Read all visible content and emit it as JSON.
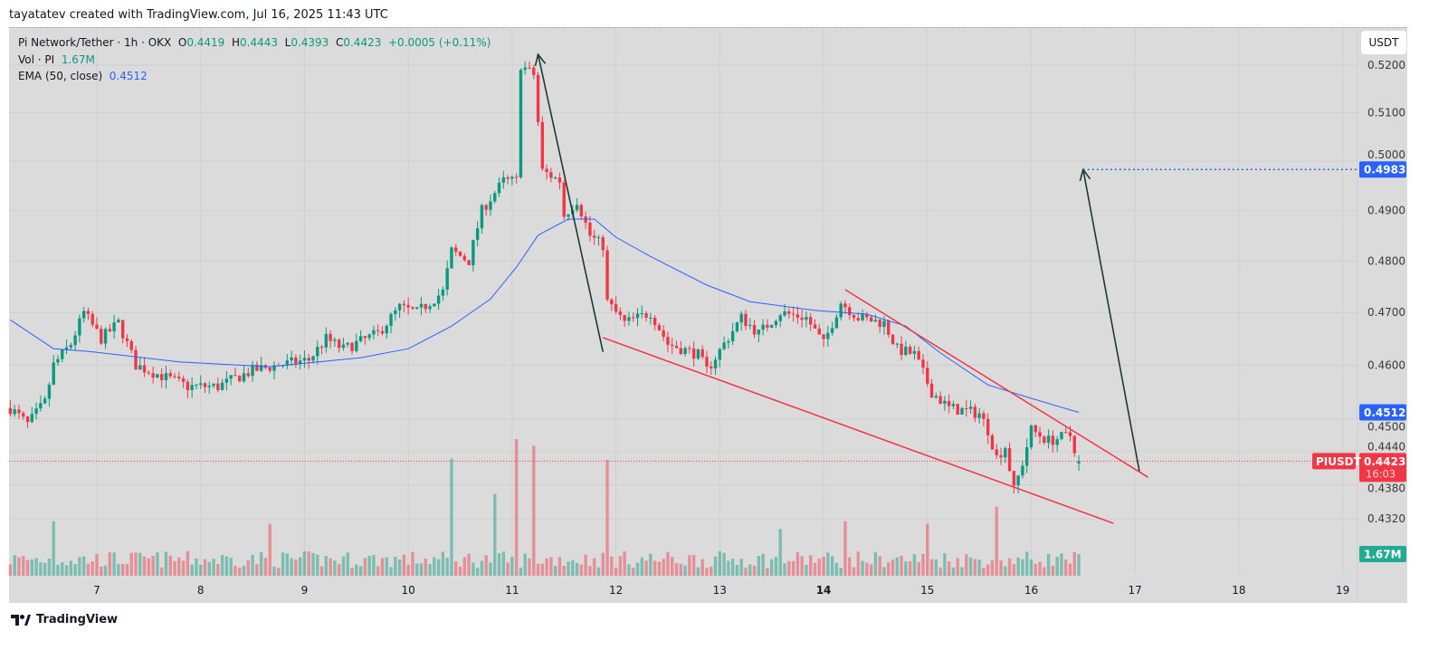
{
  "caption": "tayatatev created with TradingView.com, Jul 16, 2025 11:43 UTC",
  "legend": {
    "symbol": "Pi Network/Tether · 1h · OKX",
    "o_label": "O",
    "o": "0.4419",
    "h_label": "H",
    "h": "0.4443",
    "l_label": "L",
    "l": "0.4393",
    "c_label": "C",
    "c": "0.4423",
    "change": "+0.0005 (+0.11%)",
    "vol_label": "Vol · PI",
    "vol": "1.67M",
    "ema_label": "EMA (50, close)",
    "ema": "0.4512"
  },
  "currency_button": "USDT",
  "footer_logo": "TradingView",
  "colors": {
    "up": "#089981",
    "down": "#f23645",
    "ema": "#2962ff",
    "background": "#dbdbdb",
    "annotation_arrow": "#1e3a2f",
    "trendline": "#f23645"
  },
  "chart_data": {
    "type": "candlestick",
    "interval": "1h",
    "y_scale": "log",
    "ylim": [
      0.4245,
      0.529
    ],
    "y_ticks": [
      "0.5200",
      "0.5100",
      "0.5000",
      "0.4900",
      "0.4800",
      "0.4700",
      "0.4600",
      "0.4500",
      "0.4440",
      "0.4380",
      "0.4320"
    ],
    "x_ticks": [
      {
        "label": "7",
        "t": "2025-07-07T00:00"
      },
      {
        "label": "8",
        "t": "2025-07-08T00:00"
      },
      {
        "label": "9",
        "t": "2025-07-09T00:00"
      },
      {
        "label": "10",
        "t": "2025-07-10T00:00"
      },
      {
        "label": "11",
        "t": "2025-07-11T00:00"
      },
      {
        "label": "12",
        "t": "2025-07-12T00:00"
      },
      {
        "label": "13",
        "t": "2025-07-13T00:00"
      },
      {
        "label": "14",
        "t": "2025-07-14T00:00",
        "bold": true
      },
      {
        "label": "15",
        "t": "2025-07-15T00:00"
      },
      {
        "label": "16",
        "t": "2025-07-16T00:00"
      },
      {
        "label": "17",
        "t": "2025-07-17T00:00"
      },
      {
        "label": "18",
        "t": "2025-07-18T00:00"
      },
      {
        "label": "19",
        "t": "2025-07-19T00:00"
      }
    ],
    "close_path": [
      [
        "2025-07-06T04:00",
        0.452
      ],
      [
        "2025-07-06T08:00",
        0.449
      ],
      [
        "2025-07-06T12:00",
        0.453
      ],
      [
        "2025-07-06T14:00",
        0.46
      ],
      [
        "2025-07-06T18:00",
        0.464
      ],
      [
        "2025-07-06T21:00",
        0.47
      ],
      [
        "2025-07-07T01:00",
        0.465
      ],
      [
        "2025-07-07T05:00",
        0.468
      ],
      [
        "2025-07-07T09:00",
        0.46
      ],
      [
        "2025-07-07T15:00",
        0.458
      ],
      [
        "2025-07-07T21:00",
        0.456
      ],
      [
        "2025-07-08T04:00",
        0.456
      ],
      [
        "2025-07-08T12:00",
        0.459
      ],
      [
        "2025-07-08T18:00",
        0.46
      ],
      [
        "2025-07-09T01:00",
        0.461
      ],
      [
        "2025-07-09T05:00",
        0.465
      ],
      [
        "2025-07-09T09:00",
        0.463
      ],
      [
        "2025-07-09T17:00",
        0.466
      ],
      [
        "2025-07-09T22:00",
        0.471
      ],
      [
        "2025-07-10T02:00",
        0.47
      ],
      [
        "2025-07-10T08:00",
        0.474
      ],
      [
        "2025-07-10T10:00",
        0.482
      ],
      [
        "2025-07-10T14:00",
        0.48
      ],
      [
        "2025-07-10T17:00",
        0.49
      ],
      [
        "2025-07-10T22:00",
        0.496
      ],
      [
        "2025-07-11T01:00",
        0.496
      ],
      [
        "2025-07-11T02:00",
        0.52
      ],
      [
        "2025-07-11T05:00",
        0.518
      ],
      [
        "2025-07-11T07:00",
        0.498
      ],
      [
        "2025-07-11T11:00",
        0.496
      ],
      [
        "2025-07-11T12:00",
        0.489
      ],
      [
        "2025-07-11T15:00",
        0.492
      ],
      [
        "2025-07-11T18:00",
        0.485
      ],
      [
        "2025-07-11T21:00",
        0.483
      ],
      [
        "2025-07-11T22:00",
        0.472
      ],
      [
        "2025-07-12T02:00",
        0.468
      ],
      [
        "2025-07-12T08:00",
        0.47
      ],
      [
        "2025-07-12T12:00",
        0.464
      ],
      [
        "2025-07-12T19:00",
        0.462
      ],
      [
        "2025-07-12T21:00",
        0.459
      ],
      [
        "2025-07-13T01:00",
        0.464
      ],
      [
        "2025-07-13T05:00",
        0.469
      ],
      [
        "2025-07-13T09:00",
        0.466
      ],
      [
        "2025-07-13T14:00",
        0.47
      ],
      [
        "2025-07-13T20:00",
        0.469
      ],
      [
        "2025-07-14T00:00",
        0.464
      ],
      [
        "2025-07-14T04:00",
        0.472
      ],
      [
        "2025-07-14T08:00",
        0.469
      ],
      [
        "2025-07-14T14:00",
        0.468
      ],
      [
        "2025-07-14T17:00",
        0.463
      ],
      [
        "2025-07-14T21:00",
        0.462
      ],
      [
        "2025-07-15T01:00",
        0.455
      ],
      [
        "2025-07-15T05:00",
        0.452
      ],
      [
        "2025-07-15T12:00",
        0.451
      ],
      [
        "2025-07-15T14:00",
        0.448
      ],
      [
        "2025-07-15T16:00",
        0.443
      ],
      [
        "2025-07-15T18:00",
        0.445
      ],
      [
        "2025-07-15T20:00",
        0.437
      ],
      [
        "2025-07-15T22:00",
        0.442
      ],
      [
        "2025-07-16T00:00",
        0.448
      ],
      [
        "2025-07-16T04:00",
        0.446
      ],
      [
        "2025-07-16T09:00",
        0.447
      ],
      [
        "2025-07-16T11:00",
        0.4423
      ]
    ],
    "ema50": [
      [
        "2025-07-06T04:00",
        0.4686
      ],
      [
        "2025-07-06T14:00",
        0.4631
      ],
      [
        "2025-07-06T22:00",
        0.4626
      ],
      [
        "2025-07-07T19:00",
        0.4606
      ],
      [
        "2025-07-08T16:00",
        0.4597
      ],
      [
        "2025-07-09T13:00",
        0.4614
      ],
      [
        "2025-07-10T00:00",
        0.4631
      ],
      [
        "2025-07-10T10:00",
        0.4674
      ],
      [
        "2025-07-10T19:00",
        0.4726
      ],
      [
        "2025-07-11T01:00",
        0.4788
      ],
      [
        "2025-07-11T06:00",
        0.4851
      ],
      [
        "2025-07-11T13:00",
        0.4883
      ],
      [
        "2025-07-11T19:00",
        0.4883
      ],
      [
        "2025-07-12T00:00",
        0.4847
      ],
      [
        "2025-07-12T08:00",
        0.4809
      ],
      [
        "2025-07-12T21:00",
        0.4753
      ],
      [
        "2025-07-13T07:00",
        0.4721
      ],
      [
        "2025-07-13T22:00",
        0.4704
      ],
      [
        "2025-07-14T10:00",
        0.4697
      ],
      [
        "2025-07-14T19:00",
        0.4674
      ],
      [
        "2025-07-15T03:00",
        0.4623
      ],
      [
        "2025-07-15T14:00",
        0.4563
      ],
      [
        "2025-07-16T00:00",
        0.4538
      ],
      [
        "2025-07-16T11:00",
        0.4512
      ]
    ],
    "volume_spikes_millions": [
      [
        "2025-07-06T14:00",
        4.2
      ],
      [
        "2025-07-08T16:00",
        4.0
      ],
      [
        "2025-07-10T10:00",
        9.0
      ],
      [
        "2025-07-10T20:00",
        6.3
      ],
      [
        "2025-07-11T01:00",
        10.5
      ],
      [
        "2025-07-11T05:00",
        10.0
      ],
      [
        "2025-07-11T22:00",
        8.9
      ],
      [
        "2025-07-13T14:00",
        3.6
      ],
      [
        "2025-07-14T05:00",
        4.2
      ],
      [
        "2025-07-14T24:00",
        4.0
      ],
      [
        "2025-07-15T16:00",
        5.3
      ]
    ],
    "last_volume": "1.67M",
    "price_labels": [
      {
        "value": "0.4983",
        "color": "#2962ff"
      },
      {
        "value": "0.4512",
        "color": "#2962ff"
      },
      {
        "symbol": "PIUSDT",
        "value": "0.4423",
        "countdown": "16:03",
        "color": "#f23645"
      },
      {
        "value": "1.67M",
        "color": "#22ab94"
      }
    ],
    "drawings": [
      {
        "type": "arrow",
        "from": [
          "2025-07-11T21:00",
          0.4625
        ],
        "to": [
          "2025-07-11T06:00",
          0.5223
        ]
      },
      {
        "type": "arrow",
        "from": [
          "2025-07-17T01:00",
          0.4405
        ],
        "to": [
          "2025-07-16T12:00",
          0.4983
        ]
      },
      {
        "type": "trendline",
        "from": [
          "2025-07-11T21:00",
          0.4652
        ],
        "to": [
          "2025-07-16T19:00",
          0.4312
        ]
      },
      {
        "type": "trendline",
        "from": [
          "2025-07-14T05:00",
          0.4744
        ],
        "to": [
          "2025-07-17T03:00",
          0.4394
        ]
      },
      {
        "type": "horizontal-dotted",
        "from": [
          "2025-07-16T12:00",
          0.4983
        ]
      }
    ]
  }
}
